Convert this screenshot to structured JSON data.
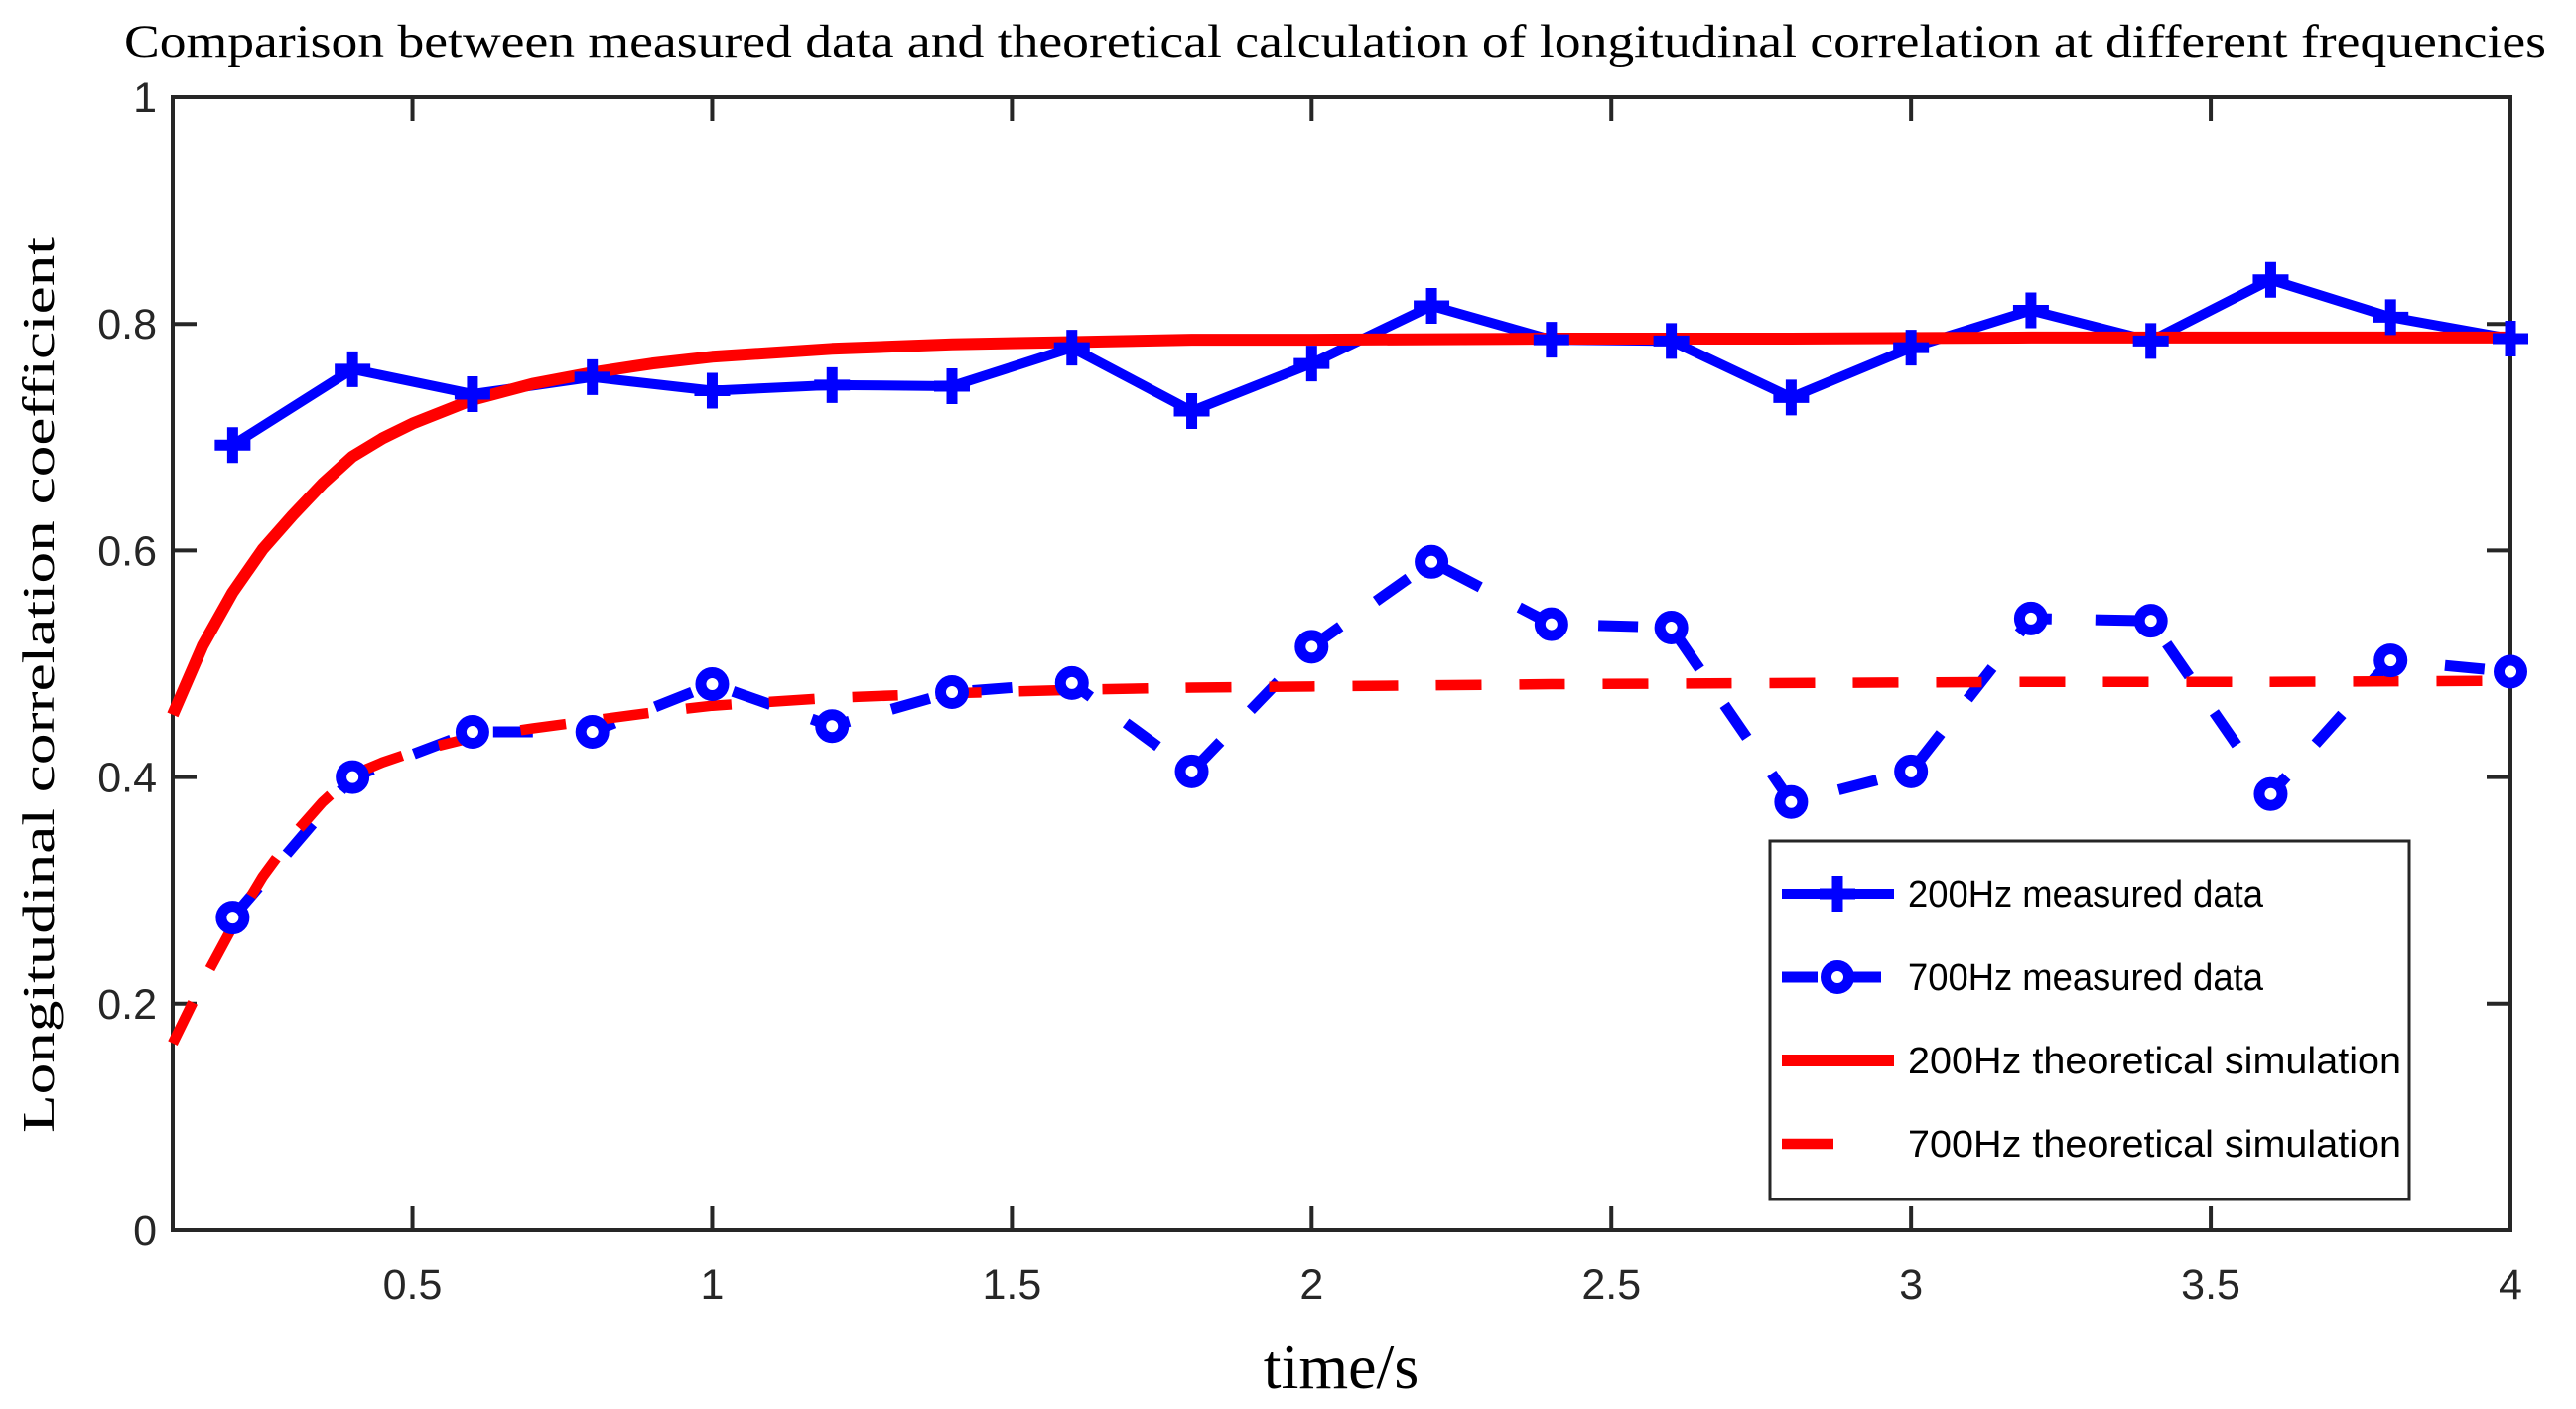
{
  "chart_data": {
    "type": "line",
    "title": "Comparison between measured data and theoretical calculation of longitudinal correlation at different frequencies",
    "xlabel": "time/s",
    "ylabel": "Longitudinal correlation coefficient",
    "xlim": [
      0.1,
      4
    ],
    "ylim": [
      0,
      1
    ],
    "xticks": [
      0.5,
      1,
      1.5,
      2,
      2.5,
      3,
      3.5,
      4
    ],
    "xtick_labels": [
      "0.5",
      "1",
      "1.5",
      "2",
      "2.5",
      "3",
      "3.5",
      "4"
    ],
    "yticks": [
      0,
      0.2,
      0.4,
      0.6,
      0.8,
      1
    ],
    "ytick_labels": [
      "0",
      "0.2",
      "0.4",
      "0.6",
      "0.8",
      "1"
    ],
    "grid": false,
    "box": true,
    "axis_color": "#262626",
    "background_color": "#ffffff",
    "legend_position": "inside-lower-right",
    "series": [
      {
        "name": "200Hz measured data",
        "color": "#0000ff",
        "style": "solid",
        "marker": "plus",
        "x": [
          0.2,
          0.4,
          0.6,
          0.8,
          1.0,
          1.2,
          1.4,
          1.6,
          1.8,
          2.0,
          2.2,
          2.4,
          2.6,
          2.8,
          3.0,
          3.2,
          3.4,
          3.6,
          3.8,
          4.0
        ],
        "y": [
          0.693,
          0.76,
          0.738,
          0.753,
          0.741,
          0.746,
          0.745,
          0.779,
          0.723,
          0.765,
          0.816,
          0.786,
          0.785,
          0.735,
          0.779,
          0.812,
          0.785,
          0.839,
          0.806,
          0.787
        ]
      },
      {
        "name": "700Hz measured data",
        "color": "#0000ff",
        "style": "dashed",
        "marker": "circle",
        "x": [
          0.2,
          0.4,
          0.6,
          0.8,
          1.0,
          1.2,
          1.4,
          1.6,
          1.8,
          2.0,
          2.2,
          2.4,
          2.6,
          2.8,
          3.0,
          3.2,
          3.4,
          3.6,
          3.8,
          4.0
        ],
        "y": [
          0.276,
          0.4,
          0.44,
          0.44,
          0.482,
          0.445,
          0.475,
          0.483,
          0.405,
          0.515,
          0.59,
          0.535,
          0.532,
          0.378,
          0.405,
          0.54,
          0.538,
          0.385,
          0.503,
          0.493
        ]
      },
      {
        "name": "200Hz theoretical simulation",
        "color": "#ff0000",
        "style": "solid",
        "marker": "none",
        "x": [
          0.1,
          0.15,
          0.2,
          0.25,
          0.3,
          0.35,
          0.4,
          0.45,
          0.5,
          0.6,
          0.7,
          0.8,
          0.9,
          1.0,
          1.2,
          1.4,
          1.6,
          1.8,
          2.0,
          2.4,
          2.8,
          3.2,
          3.6,
          4.0
        ],
        "y": [
          0.455,
          0.516,
          0.563,
          0.601,
          0.631,
          0.659,
          0.683,
          0.699,
          0.712,
          0.733,
          0.747,
          0.757,
          0.765,
          0.771,
          0.778,
          0.782,
          0.784,
          0.786,
          0.786,
          0.787,
          0.787,
          0.788,
          0.788,
          0.788
        ]
      },
      {
        "name": "700Hz theoretical simulation",
        "color": "#ff0000",
        "style": "dashed",
        "marker": "none",
        "x": [
          0.1,
          0.15,
          0.2,
          0.25,
          0.3,
          0.35,
          0.4,
          0.45,
          0.5,
          0.6,
          0.7,
          0.8,
          0.9,
          1.0,
          1.2,
          1.4,
          1.6,
          1.8,
          2.0,
          2.4,
          2.8,
          3.2,
          3.6,
          4.0
        ],
        "y": [
          0.165,
          0.219,
          0.268,
          0.312,
          0.348,
          0.378,
          0.402,
          0.413,
          0.422,
          0.435,
          0.443,
          0.45,
          0.457,
          0.463,
          0.47,
          0.474,
          0.477,
          0.479,
          0.48,
          0.482,
          0.483,
          0.484,
          0.484,
          0.485
        ]
      }
    ]
  }
}
